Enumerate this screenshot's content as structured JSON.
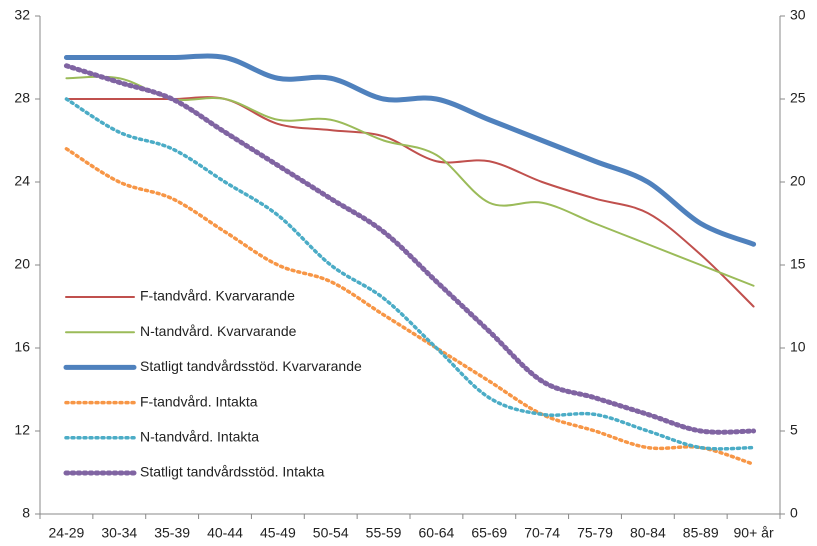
{
  "chart_data": {
    "type": "line",
    "categories": [
      "24-29",
      "30-34",
      "35-39",
      "40-44",
      "45-49",
      "50-54",
      "55-59",
      "60-64",
      "65-69",
      "70-74",
      "75-79",
      "80-84",
      "85-89",
      "90+ år"
    ],
    "ylim": [
      8,
      32
    ],
    "yticks": [
      8,
      12,
      16,
      20,
      24,
      28,
      32
    ],
    "y2lim": [
      0,
      30
    ],
    "y2ticks": [
      0,
      5,
      10,
      15,
      20,
      25,
      30
    ],
    "legend": "left",
    "series": [
      {
        "name": "F-tandvård. Kvarvarande",
        "color": "#c0504d",
        "style": "solid",
        "values": [
          28,
          28,
          28,
          28,
          26.8,
          26.5,
          26.2,
          25,
          25,
          24,
          23.2,
          22.5,
          20.5,
          18
        ]
      },
      {
        "name": "N-tandvård. Kvarvarande",
        "color": "#9bbb59",
        "style": "solid",
        "values": [
          29,
          29,
          28,
          28,
          27,
          27,
          26,
          25.3,
          23,
          23,
          22,
          21,
          20,
          19
        ]
      },
      {
        "name": "Statligt tandvårdsstöd. Kvarvarande",
        "color": "#4f81bd",
        "style": "solid",
        "values": [
          30,
          30,
          30,
          30,
          29,
          29,
          28,
          28,
          27,
          26,
          25,
          24,
          22,
          21
        ]
      },
      {
        "name": "F-tandvård. Intakta",
        "color": "#f79646",
        "style": "dotted",
        "axis": "y2",
        "values": [
          22,
          20,
          19,
          17,
          15,
          14,
          12,
          10,
          8,
          6,
          5,
          4,
          4,
          3
        ]
      },
      {
        "name": "N-tandvård. Intakta",
        "color": "#4bacc6",
        "style": "dotted",
        "axis": "y2",
        "values": [
          25,
          23,
          22,
          20,
          18,
          15,
          13,
          10,
          7,
          6,
          6,
          5,
          4,
          4
        ]
      },
      {
        "name": "Statligt tandvårdsstöd. Intakta",
        "color": "#8064a2",
        "style": "dotted",
        "axis": "y2",
        "values": [
          27,
          26,
          25,
          23,
          21,
          19,
          17,
          14,
          11,
          8,
          7,
          6,
          5,
          5
        ]
      }
    ]
  }
}
